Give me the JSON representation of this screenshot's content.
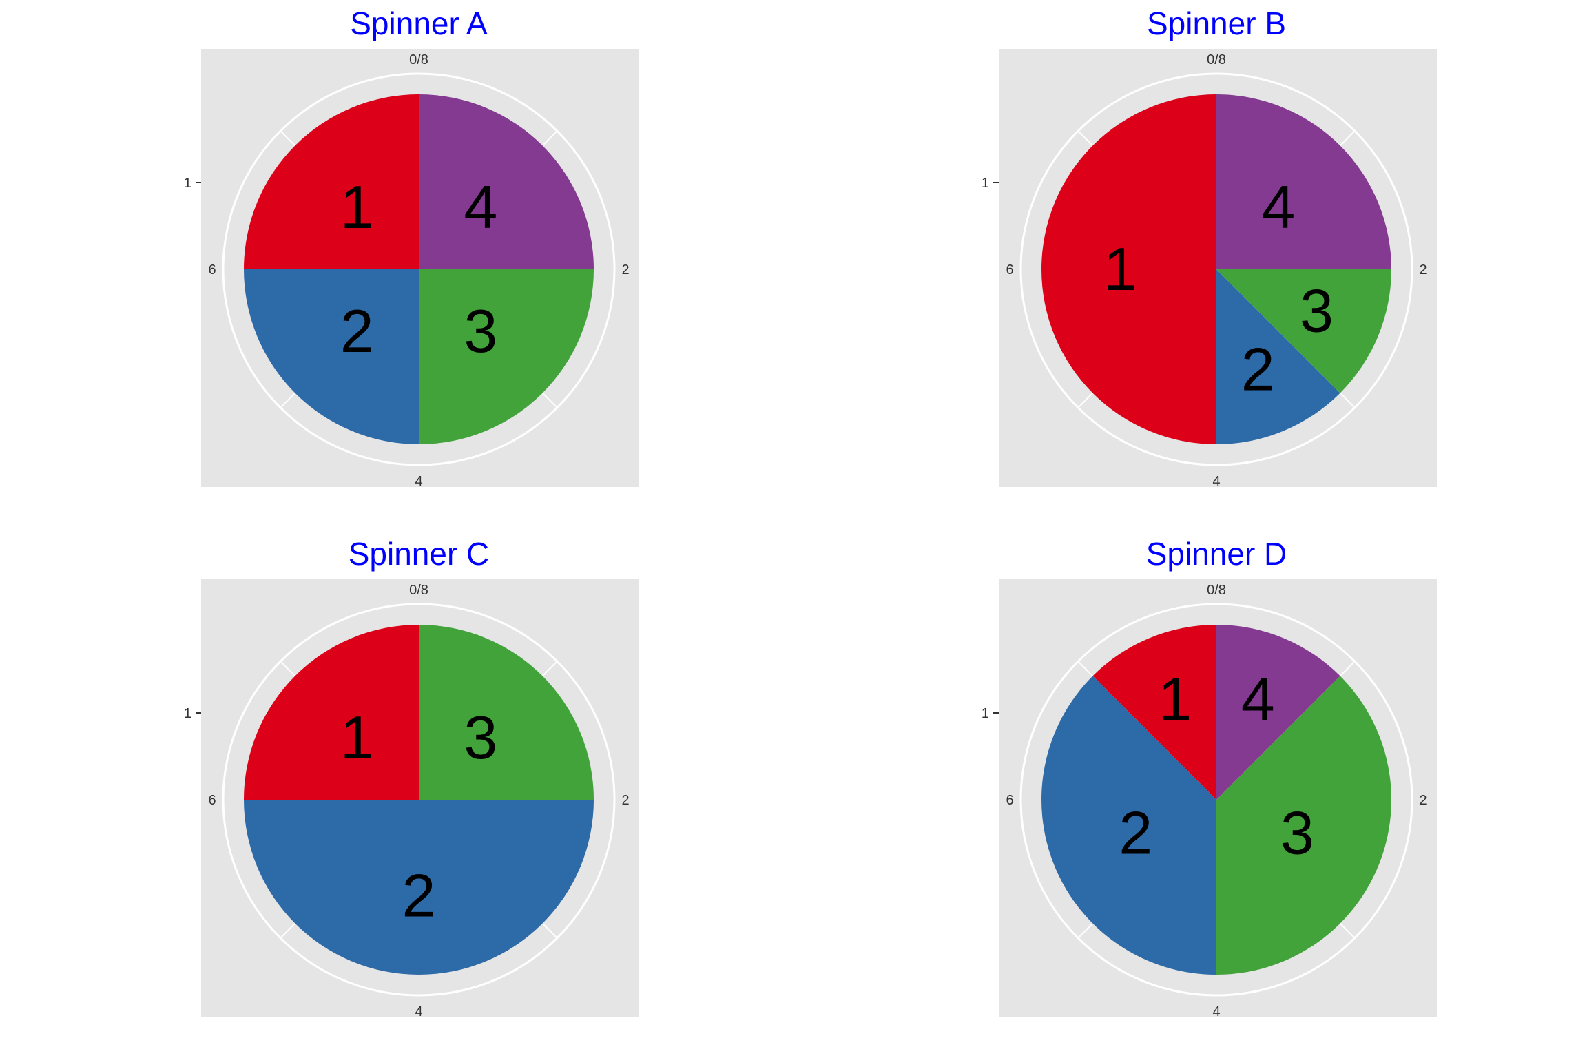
{
  "colors": {
    "panel": "#E5E5E5",
    "grid": "#FFFFFF",
    "title": "#0000FF",
    "tick_text": "#333333",
    "segment_1": "#DC0019",
    "segment_2": "#2D6AA8",
    "segment_3": "#42A33A",
    "segment_4": "#843A90"
  },
  "chart_data": [
    {
      "type": "pie",
      "title": "Spinner A",
      "theta_range": [
        0,
        8
      ],
      "theta_ticks": [
        "0/8",
        "2",
        "4",
        "6"
      ],
      "r_ticks": [
        "1"
      ],
      "slices": [
        {
          "label": "1",
          "start": 6,
          "end": 8,
          "color_key": "segment_1"
        },
        {
          "label": "2",
          "start": 4,
          "end": 6,
          "color_key": "segment_2"
        },
        {
          "label": "3",
          "start": 2,
          "end": 4,
          "color_key": "segment_3"
        },
        {
          "label": "4",
          "start": 0,
          "end": 2,
          "color_key": "segment_4"
        }
      ]
    },
    {
      "type": "pie",
      "title": "Spinner B",
      "theta_range": [
        0,
        8
      ],
      "theta_ticks": [
        "0/8",
        "2",
        "4",
        "6"
      ],
      "r_ticks": [
        "1"
      ],
      "slices": [
        {
          "label": "1",
          "start": 4,
          "end": 8,
          "color_key": "segment_1"
        },
        {
          "label": "2",
          "start": 3,
          "end": 4,
          "color_key": "segment_2"
        },
        {
          "label": "3",
          "start": 2,
          "end": 3,
          "color_key": "segment_3"
        },
        {
          "label": "4",
          "start": 0,
          "end": 2,
          "color_key": "segment_4"
        }
      ]
    },
    {
      "type": "pie",
      "title": "Spinner C",
      "theta_range": [
        0,
        8
      ],
      "theta_ticks": [
        "0/8",
        "2",
        "4",
        "6"
      ],
      "r_ticks": [
        "1"
      ],
      "slices": [
        {
          "label": "1",
          "start": 6,
          "end": 8,
          "color_key": "segment_1"
        },
        {
          "label": "2",
          "start": 2,
          "end": 6,
          "color_key": "segment_2"
        },
        {
          "label": "3",
          "start": 0,
          "end": 2,
          "color_key": "segment_3"
        }
      ]
    },
    {
      "type": "pie",
      "title": "Spinner D",
      "theta_range": [
        0,
        8
      ],
      "theta_ticks": [
        "0/8",
        "2",
        "4",
        "6"
      ],
      "r_ticks": [
        "1"
      ],
      "slices": [
        {
          "label": "1",
          "start": 7,
          "end": 8,
          "color_key": "segment_1"
        },
        {
          "label": "2",
          "start": 4,
          "end": 7,
          "color_key": "segment_2"
        },
        {
          "label": "3",
          "start": 1,
          "end": 4,
          "color_key": "segment_3"
        },
        {
          "label": "4",
          "start": 0,
          "end": 1,
          "color_key": "segment_4"
        }
      ]
    }
  ]
}
